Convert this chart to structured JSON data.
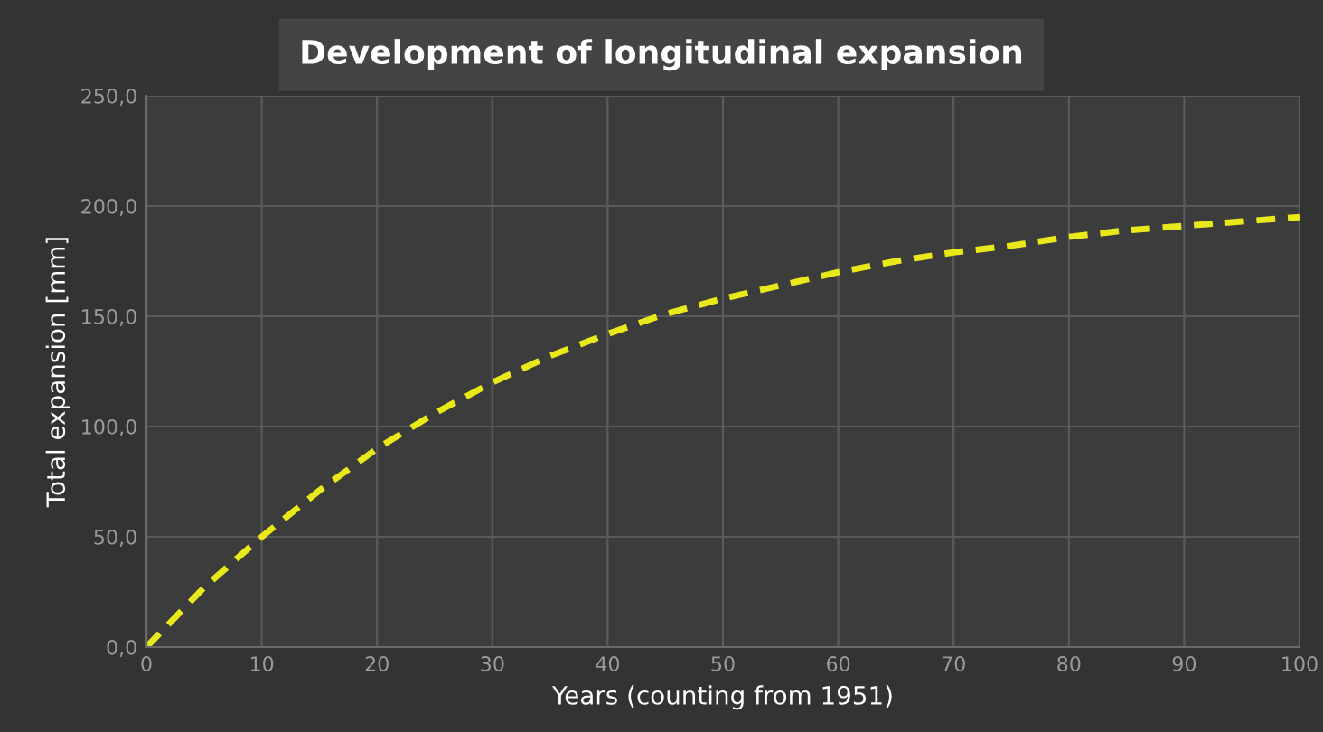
{
  "chart_data": {
    "type": "line",
    "title": "Development of longitudinal expansion",
    "xlabel": "Years (counting from 1951)",
    "ylabel": "Total expansion [mm]",
    "x": [
      0,
      5,
      10,
      15,
      20,
      25,
      30,
      35,
      40,
      45,
      50,
      55,
      60,
      65,
      70,
      75,
      80,
      85,
      90,
      95,
      100
    ],
    "series": [
      {
        "color": "#e8e81a",
        "values": [
          0,
          27,
          50,
          71,
          90,
          106,
          120,
          132,
          142,
          151,
          158,
          164,
          170,
          175,
          179,
          182,
          186,
          189,
          191,
          193,
          195
        ]
      }
    ],
    "xlim": [
      0,
      100
    ],
    "xticks": [
      0,
      10,
      20,
      30,
      40,
      50,
      60,
      70,
      80,
      90,
      100
    ],
    "ylim": [
      0,
      250
    ],
    "yticks": [
      {
        "value": 0,
        "label": "0,0"
      },
      {
        "value": 50,
        "label": "50,0"
      },
      {
        "value": 100,
        "label": "100,0"
      },
      {
        "value": 150,
        "label": "150,0"
      },
      {
        "value": 200,
        "label": "200,0"
      },
      {
        "value": 250,
        "label": "250,0"
      }
    ],
    "grid": true,
    "line_style": "dashed",
    "marker": "none",
    "legend": false
  }
}
